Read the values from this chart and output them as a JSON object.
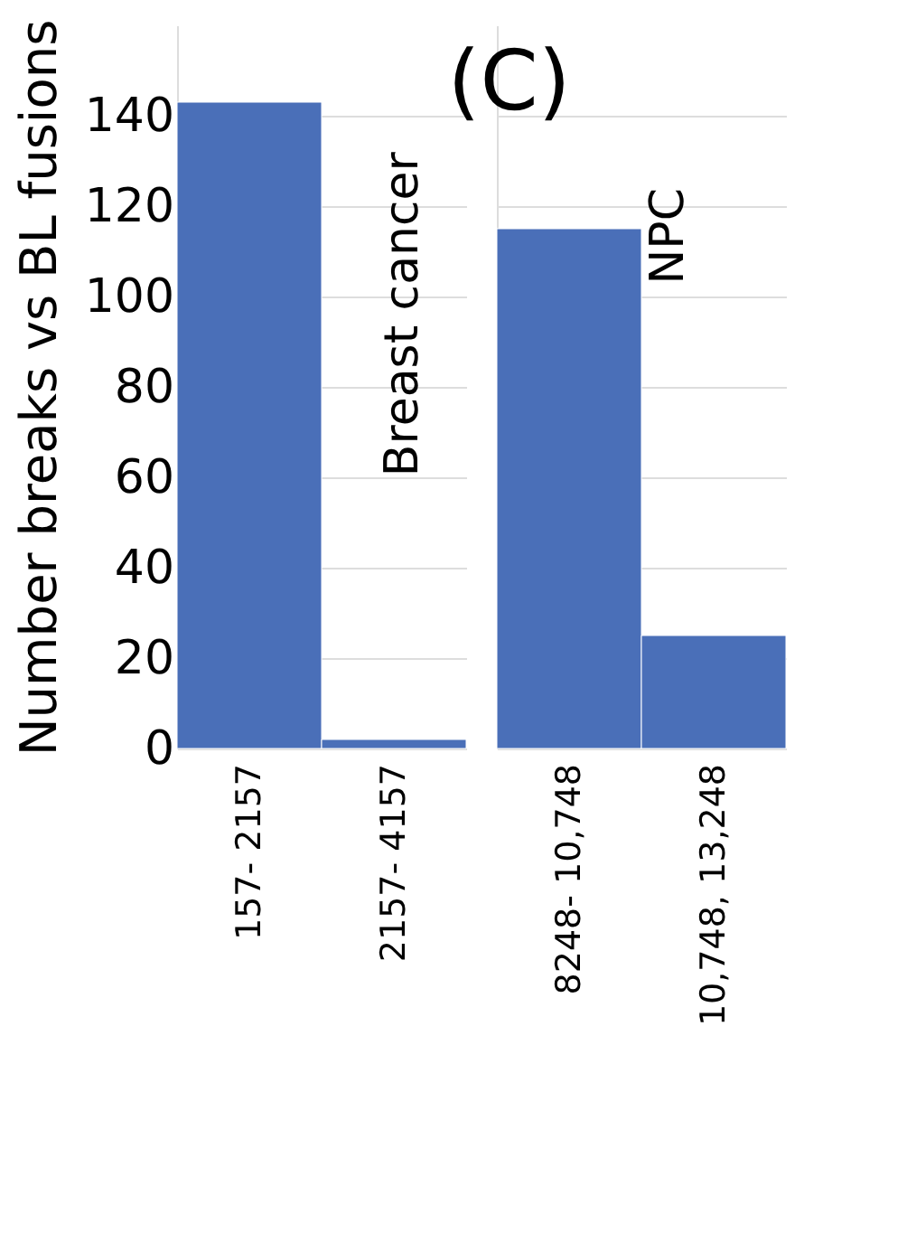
{
  "chart_data": [
    {
      "type": "bar",
      "ylabel": "Number breaks vs BL fusions",
      "categories": [
        "157- 2157",
        "2157- 4157"
      ],
      "values": [
        143,
        2
      ],
      "color": "#4a6fb8",
      "ylim": [
        0,
        160
      ],
      "yticks": [
        0,
        20,
        40,
        60,
        80,
        100,
        120,
        140
      ],
      "grid": "y",
      "annotations": [
        "Breast cancer"
      ]
    },
    {
      "type": "bar",
      "title": "(C)",
      "categories": [
        "8248- 10,748",
        "10,748, 13,248"
      ],
      "values": [
        115,
        25
      ],
      "color": "#4a6fb8",
      "ylim": [
        0,
        160
      ],
      "yticks": [
        0,
        20,
        40,
        60,
        80,
        100,
        120,
        140
      ],
      "grid": "y",
      "tick_labels": "x",
      "annotations": [
        "NPC"
      ]
    }
  ]
}
